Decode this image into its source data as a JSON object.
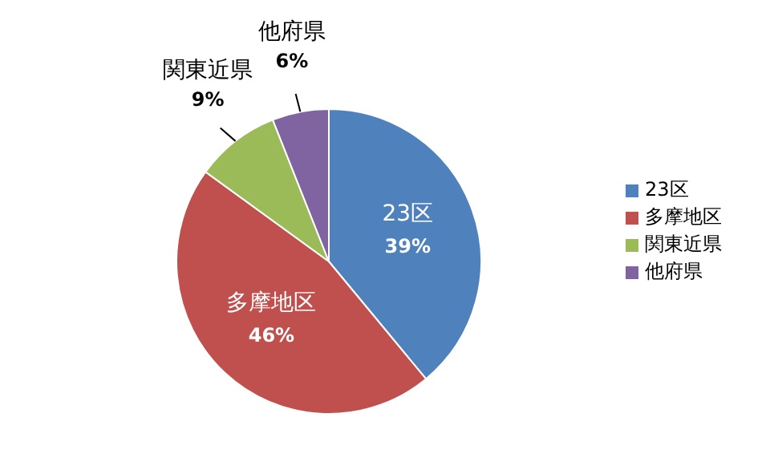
{
  "chart_data": {
    "type": "pie",
    "categories": [
      "23区",
      "多摩地区",
      "関東近県",
      "他府県"
    ],
    "values": [
      39,
      46,
      9,
      6
    ],
    "colors": [
      "#4f81bd",
      "#c0504d",
      "#9bbb59",
      "#8064a2"
    ],
    "value_labels": [
      "39%",
      "46%",
      "9%",
      "6%"
    ],
    "legend": "right"
  }
}
